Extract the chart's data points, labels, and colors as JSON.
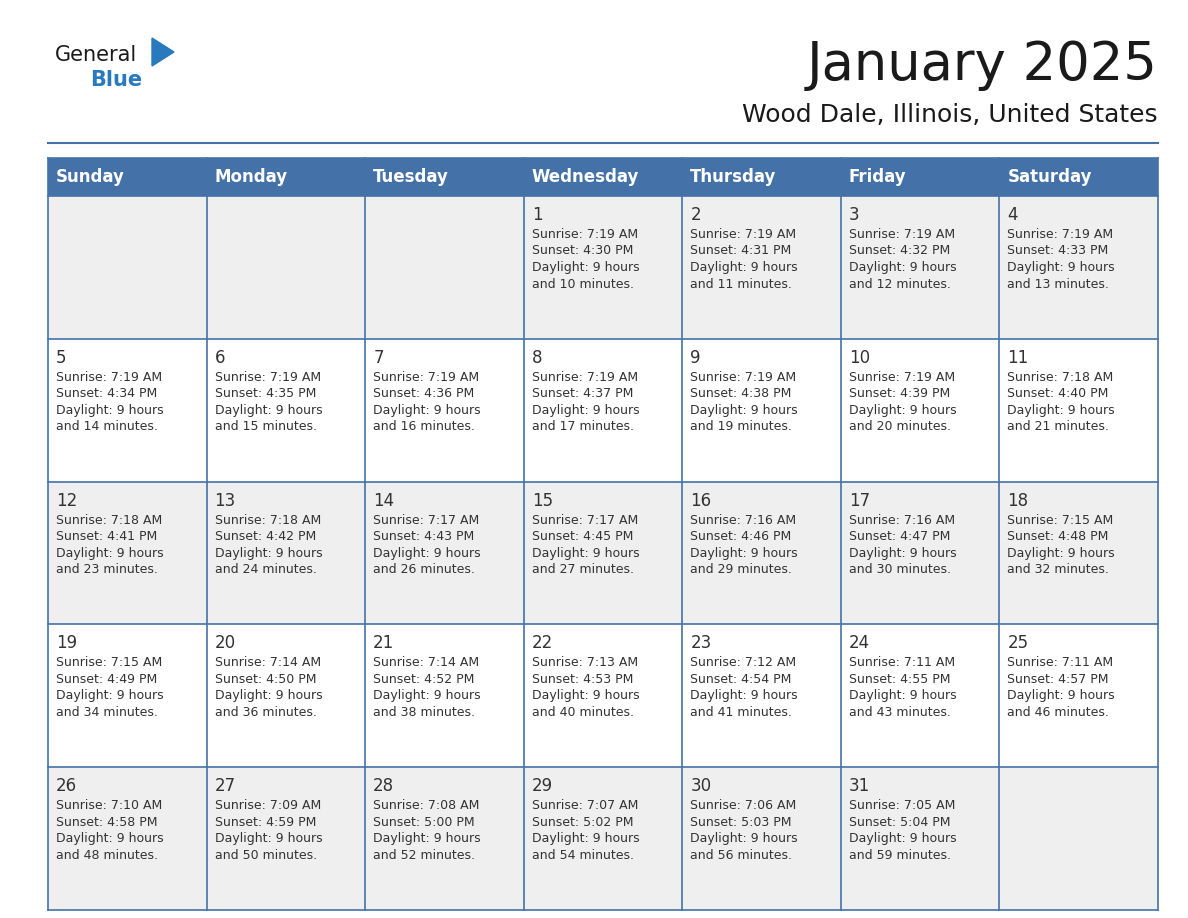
{
  "title": "January 2025",
  "subtitle": "Wood Dale, Illinois, United States",
  "days_of_week": [
    "Sunday",
    "Monday",
    "Tuesday",
    "Wednesday",
    "Thursday",
    "Friday",
    "Saturday"
  ],
  "header_bg_color": "#4472A8",
  "header_text_color": "#FFFFFF",
  "cell_bg_odd": "#EFEFEF",
  "cell_bg_even": "#FFFFFF",
  "grid_line_color": "#4472A8",
  "day_num_color": "#333333",
  "info_text_color": "#333333",
  "title_color": "#1a1a1a",
  "subtitle_color": "#1a1a1a",
  "logo_dark_color": "#1a1a1a",
  "logo_blue_color": "#2979BE",
  "weeks": [
    {
      "days": [
        {
          "date": "",
          "sunrise": "",
          "sunset": "",
          "daylight": ""
        },
        {
          "date": "",
          "sunrise": "",
          "sunset": "",
          "daylight": ""
        },
        {
          "date": "",
          "sunrise": "",
          "sunset": "",
          "daylight": ""
        },
        {
          "date": "1",
          "sunrise": "7:19 AM",
          "sunset": "4:30 PM",
          "daylight": "9 hours and 10 minutes."
        },
        {
          "date": "2",
          "sunrise": "7:19 AM",
          "sunset": "4:31 PM",
          "daylight": "9 hours and 11 minutes."
        },
        {
          "date": "3",
          "sunrise": "7:19 AM",
          "sunset": "4:32 PM",
          "daylight": "9 hours and 12 minutes."
        },
        {
          "date": "4",
          "sunrise": "7:19 AM",
          "sunset": "4:33 PM",
          "daylight": "9 hours and 13 minutes."
        }
      ]
    },
    {
      "days": [
        {
          "date": "5",
          "sunrise": "7:19 AM",
          "sunset": "4:34 PM",
          "daylight": "9 hours and 14 minutes."
        },
        {
          "date": "6",
          "sunrise": "7:19 AM",
          "sunset": "4:35 PM",
          "daylight": "9 hours and 15 minutes."
        },
        {
          "date": "7",
          "sunrise": "7:19 AM",
          "sunset": "4:36 PM",
          "daylight": "9 hours and 16 minutes."
        },
        {
          "date": "8",
          "sunrise": "7:19 AM",
          "sunset": "4:37 PM",
          "daylight": "9 hours and 17 minutes."
        },
        {
          "date": "9",
          "sunrise": "7:19 AM",
          "sunset": "4:38 PM",
          "daylight": "9 hours and 19 minutes."
        },
        {
          "date": "10",
          "sunrise": "7:19 AM",
          "sunset": "4:39 PM",
          "daylight": "9 hours and 20 minutes."
        },
        {
          "date": "11",
          "sunrise": "7:18 AM",
          "sunset": "4:40 PM",
          "daylight": "9 hours and 21 minutes."
        }
      ]
    },
    {
      "days": [
        {
          "date": "12",
          "sunrise": "7:18 AM",
          "sunset": "4:41 PM",
          "daylight": "9 hours and 23 minutes."
        },
        {
          "date": "13",
          "sunrise": "7:18 AM",
          "sunset": "4:42 PM",
          "daylight": "9 hours and 24 minutes."
        },
        {
          "date": "14",
          "sunrise": "7:17 AM",
          "sunset": "4:43 PM",
          "daylight": "9 hours and 26 minutes."
        },
        {
          "date": "15",
          "sunrise": "7:17 AM",
          "sunset": "4:45 PM",
          "daylight": "9 hours and 27 minutes."
        },
        {
          "date": "16",
          "sunrise": "7:16 AM",
          "sunset": "4:46 PM",
          "daylight": "9 hours and 29 minutes."
        },
        {
          "date": "17",
          "sunrise": "7:16 AM",
          "sunset": "4:47 PM",
          "daylight": "9 hours and 30 minutes."
        },
        {
          "date": "18",
          "sunrise": "7:15 AM",
          "sunset": "4:48 PM",
          "daylight": "9 hours and 32 minutes."
        }
      ]
    },
    {
      "days": [
        {
          "date": "19",
          "sunrise": "7:15 AM",
          "sunset": "4:49 PM",
          "daylight": "9 hours and 34 minutes."
        },
        {
          "date": "20",
          "sunrise": "7:14 AM",
          "sunset": "4:50 PM",
          "daylight": "9 hours and 36 minutes."
        },
        {
          "date": "21",
          "sunrise": "7:14 AM",
          "sunset": "4:52 PM",
          "daylight": "9 hours and 38 minutes."
        },
        {
          "date": "22",
          "sunrise": "7:13 AM",
          "sunset": "4:53 PM",
          "daylight": "9 hours and 40 minutes."
        },
        {
          "date": "23",
          "sunrise": "7:12 AM",
          "sunset": "4:54 PM",
          "daylight": "9 hours and 41 minutes."
        },
        {
          "date": "24",
          "sunrise": "7:11 AM",
          "sunset": "4:55 PM",
          "daylight": "9 hours and 43 minutes."
        },
        {
          "date": "25",
          "sunrise": "7:11 AM",
          "sunset": "4:57 PM",
          "daylight": "9 hours and 46 minutes."
        }
      ]
    },
    {
      "days": [
        {
          "date": "26",
          "sunrise": "7:10 AM",
          "sunset": "4:58 PM",
          "daylight": "9 hours and 48 minutes."
        },
        {
          "date": "27",
          "sunrise": "7:09 AM",
          "sunset": "4:59 PM",
          "daylight": "9 hours and 50 minutes."
        },
        {
          "date": "28",
          "sunrise": "7:08 AM",
          "sunset": "5:00 PM",
          "daylight": "9 hours and 52 minutes."
        },
        {
          "date": "29",
          "sunrise": "7:07 AM",
          "sunset": "5:02 PM",
          "daylight": "9 hours and 54 minutes."
        },
        {
          "date": "30",
          "sunrise": "7:06 AM",
          "sunset": "5:03 PM",
          "daylight": "9 hours and 56 minutes."
        },
        {
          "date": "31",
          "sunrise": "7:05 AM",
          "sunset": "5:04 PM",
          "daylight": "9 hours and 59 minutes."
        },
        {
          "date": "",
          "sunrise": "",
          "sunset": "",
          "daylight": ""
        }
      ]
    }
  ]
}
